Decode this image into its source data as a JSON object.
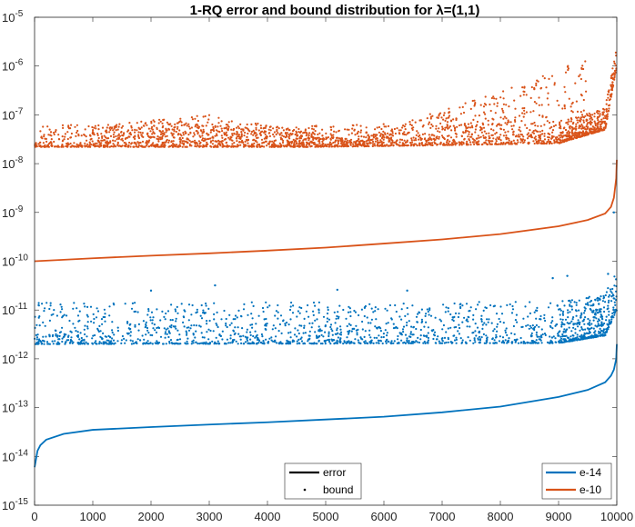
{
  "chart_data": {
    "type": "scatter",
    "title": "1-RQ error and bound distribution for λ=(1,1)",
    "xlabel": "",
    "ylabel": "",
    "xlim": [
      0,
      10000
    ],
    "ylim": [
      1e-15,
      1e-05
    ],
    "yscale": "log",
    "x_ticks": [
      0,
      1000,
      2000,
      3000,
      4000,
      5000,
      6000,
      7000,
      8000,
      9000,
      10000
    ],
    "x_tick_labels": [
      "0",
      "1000",
      "2000",
      "3000",
      "4000",
      "5000",
      "6000",
      "7000",
      "8000",
      "9000",
      "10000"
    ],
    "y_tick_exponents": [
      -15,
      -14,
      -13,
      -12,
      -11,
      -10,
      -9,
      -8,
      -7,
      -6,
      -5
    ],
    "colors": {
      "e14": "#0072BD",
      "e10": "#D95319"
    },
    "series": [
      {
        "name": "e-14 error",
        "kind": "line",
        "color": "#0072BD",
        "x": [
          1,
          50,
          100,
          200,
          500,
          1000,
          2000,
          3000,
          4000,
          5000,
          6000,
          7000,
          8000,
          9000,
          9500,
          9800,
          9900,
          9950,
          9990,
          10000
        ],
        "y": [
          6e-15,
          1.3e-14,
          1.7e-14,
          2.2e-14,
          2.9e-14,
          3.5e-14,
          4e-14,
          4.5e-14,
          5e-14,
          5.7e-14,
          6.5e-14,
          8e-14,
          1.05e-13,
          1.65e-13,
          2.3e-13,
          3.3e-13,
          4.5e-13,
          6e-13,
          1e-12,
          2e-12
        ]
      },
      {
        "name": "e-14 bound",
        "kind": "scatter",
        "color": "#0072BD",
        "x_range": [
          0,
          10000
        ],
        "base_y": [
          [
            0,
            2e-12
          ],
          [
            9000,
            2.1e-12
          ],
          [
            9800,
            3e-12
          ],
          [
            10000,
            1e-11
          ]
        ],
        "spread_decades": 0.85,
        "points": 1800,
        "outliers": {
          "x": [
            2000,
            3100,
            5200,
            6400,
            8900,
            9150,
            9850,
            9950
          ],
          "y": [
            2.5e-11,
            3.2e-11,
            2.6e-11,
            2.5e-11,
            4.5e-11,
            5e-11,
            5.5e-11,
            1e-09
          ]
        }
      },
      {
        "name": "e-10 error",
        "kind": "line",
        "color": "#D95319",
        "x": [
          0,
          1000,
          2000,
          3000,
          4000,
          5000,
          6000,
          7000,
          8000,
          9000,
          9500,
          9800,
          9900,
          9950,
          9990,
          10000
        ],
        "y": [
          1e-10,
          1.15e-10,
          1.3e-10,
          1.45e-10,
          1.65e-10,
          1.9e-10,
          2.3e-10,
          2.8e-10,
          3.6e-10,
          5.2e-10,
          7e-10,
          9.5e-10,
          1.3e-09,
          2e-09,
          5e-09,
          1.2e-08
        ]
      },
      {
        "name": "e-10 bound",
        "kind": "scatter",
        "color": "#D95319",
        "x_range": [
          0,
          10000
        ],
        "base_y": [
          [
            0,
            2.2e-08
          ],
          [
            5000,
            2.2e-08
          ],
          [
            9000,
            2.6e-08
          ],
          [
            9800,
            5e-08
          ],
          [
            10000,
            1e-06
          ]
        ],
        "spread_decades": 0.45,
        "points": 1800,
        "upper_band": {
          "x": [
            1000,
            3000,
            5500,
            6500,
            8000,
            9500
          ],
          "y": [
            6e-08,
            1e-07,
            3e-08,
            8e-08,
            3e-07,
            1.5e-06
          ]
        }
      }
    ],
    "legends": [
      {
        "position": "bottom-center",
        "entries": [
          {
            "label": "error",
            "marker": "line",
            "color": "#000000"
          },
          {
            "label": "bound",
            "marker": "dot",
            "color": "#000000"
          }
        ]
      },
      {
        "position": "bottom-right",
        "entries": [
          {
            "label": "e-14",
            "marker": "line",
            "color": "#0072BD"
          },
          {
            "label": "e-10",
            "marker": "line",
            "color": "#D95319"
          }
        ]
      }
    ]
  }
}
